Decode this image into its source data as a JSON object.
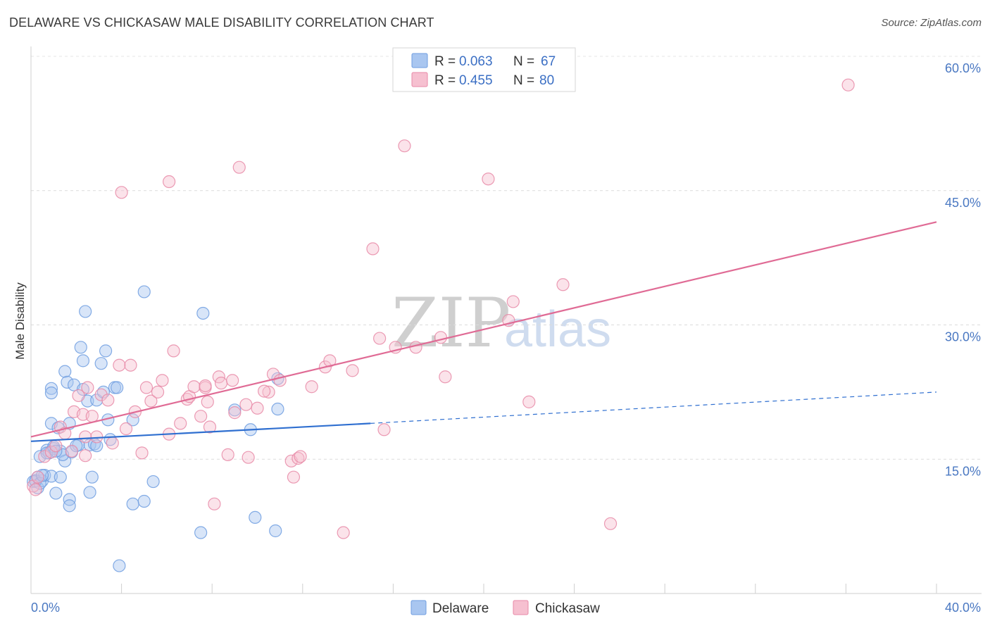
{
  "header": {
    "title": "DELAWARE VS CHICKASAW MALE DISABILITY CORRELATION CHART",
    "source": "Source: ZipAtlas.com"
  },
  "watermark": {
    "zip": "ZIP",
    "atlas": "atlas"
  },
  "legend": {
    "rows": [
      {
        "r_label": "R =",
        "r_value": "0.063",
        "n_label": "N =",
        "n_value": "67",
        "color": "#a9c6f0",
        "stroke": "#6f9de0"
      },
      {
        "r_label": "R =",
        "r_value": "0.455",
        "n_label": "N =",
        "n_value": "80",
        "color": "#f6c0d0",
        "stroke": "#e889a7"
      }
    ]
  },
  "bottom_legend": {
    "series1": "Delaware",
    "series2": "Chickasaw"
  },
  "chart_data": {
    "type": "scatter",
    "title": "DELAWARE VS CHICKASAW MALE DISABILITY CORRELATION CHART",
    "xlabel": "",
    "ylabel": "Male Disability",
    "xlim": [
      0,
      40
    ],
    "ylim": [
      0,
      60
    ],
    "x_tick_labels": [
      "0.0%",
      "40.0%"
    ],
    "y_ticks": [
      15,
      30,
      45,
      60
    ],
    "y_tick_labels": [
      "15.0%",
      "30.0%",
      "45.0%",
      "60.0%"
    ],
    "grid": true,
    "legend_position": "top-center",
    "series": [
      {
        "name": "Delaware",
        "color": "#6f9de0",
        "fill": "#a9c6f0",
        "trend": {
          "x0": 0,
          "y0": 17.0,
          "x1": 15,
          "y1": 19.0,
          "dashed_to_x": 40,
          "dashed_to_y": 22.5,
          "color": "#2f6fd0"
        },
        "points": [
          [
            0.2,
            12.5
          ],
          [
            0.3,
            13.0
          ],
          [
            0.3,
            11.8
          ],
          [
            0.4,
            15.3
          ],
          [
            0.5,
            12.6
          ],
          [
            0.6,
            13.2
          ],
          [
            0.7,
            16.0
          ],
          [
            0.8,
            15.7
          ],
          [
            0.9,
            13.1
          ],
          [
            0.9,
            22.9
          ],
          [
            0.9,
            22.4
          ],
          [
            0.9,
            19.0
          ],
          [
            1.0,
            16.2
          ],
          [
            1.1,
            11.2
          ],
          [
            1.2,
            18.5
          ],
          [
            1.3,
            13.0
          ],
          [
            1.3,
            15.9
          ],
          [
            1.5,
            14.8
          ],
          [
            1.5,
            24.8
          ],
          [
            1.6,
            23.6
          ],
          [
            1.7,
            19.0
          ],
          [
            1.7,
            10.5
          ],
          [
            1.7,
            9.8
          ],
          [
            1.8,
            15.8
          ],
          [
            1.9,
            23.3
          ],
          [
            2.1,
            16.6
          ],
          [
            2.2,
            27.5
          ],
          [
            2.3,
            26.0
          ],
          [
            2.3,
            22.8
          ],
          [
            2.4,
            31.5
          ],
          [
            2.5,
            21.5
          ],
          [
            2.6,
            16.6
          ],
          [
            2.6,
            11.3
          ],
          [
            2.7,
            13.0
          ],
          [
            2.8,
            16.7
          ],
          [
            2.9,
            16.5
          ],
          [
            2.9,
            21.6
          ],
          [
            3.1,
            25.7
          ],
          [
            3.2,
            22.5
          ],
          [
            3.3,
            27.1
          ],
          [
            3.4,
            19.4
          ],
          [
            3.5,
            17.2
          ],
          [
            3.7,
            23.0
          ],
          [
            3.8,
            23.0
          ],
          [
            3.9,
            3.1
          ],
          [
            4.5,
            19.4
          ],
          [
            4.5,
            10.0
          ],
          [
            5.0,
            10.3
          ],
          [
            5.0,
            33.7
          ],
          [
            5.4,
            12.5
          ],
          [
            7.5,
            6.8
          ],
          [
            7.6,
            31.3
          ],
          [
            9.0,
            20.5
          ],
          [
            9.7,
            18.3
          ],
          [
            9.9,
            8.5
          ],
          [
            10.8,
            7.0
          ],
          [
            10.9,
            20.6
          ],
          [
            10.9,
            24.0
          ],
          [
            0.1,
            12.5
          ],
          [
            0.2,
            12.6
          ],
          [
            0.4,
            12.3
          ],
          [
            0.5,
            13.2
          ],
          [
            0.7,
            15.7
          ],
          [
            1.0,
            16.4
          ],
          [
            1.4,
            15.5
          ],
          [
            2.0,
            16.5
          ],
          [
            1.1,
            15.9
          ]
        ]
      },
      {
        "name": "Chickasaw",
        "color": "#e889a7",
        "fill": "#f6c0d0",
        "trend": {
          "x0": 0,
          "y0": 17.5,
          "x1": 40,
          "y1": 41.5,
          "color": "#e06b95"
        },
        "points": [
          [
            0.1,
            12.0
          ],
          [
            0.2,
            11.6
          ],
          [
            0.3,
            13.0
          ],
          [
            0.6,
            15.3
          ],
          [
            0.9,
            15.8
          ],
          [
            1.1,
            16.5
          ],
          [
            1.3,
            18.6
          ],
          [
            1.5,
            17.9
          ],
          [
            1.8,
            15.9
          ],
          [
            1.9,
            20.3
          ],
          [
            2.1,
            22.1
          ],
          [
            2.3,
            20.0
          ],
          [
            2.4,
            15.4
          ],
          [
            2.5,
            23.0
          ],
          [
            2.7,
            19.8
          ],
          [
            2.9,
            17.5
          ],
          [
            3.1,
            22.2
          ],
          [
            3.4,
            21.6
          ],
          [
            3.6,
            16.8
          ],
          [
            3.9,
            25.5
          ],
          [
            4.0,
            44.8
          ],
          [
            4.2,
            18.4
          ],
          [
            4.4,
            25.5
          ],
          [
            4.6,
            20.3
          ],
          [
            4.9,
            15.7
          ],
          [
            5.1,
            23.0
          ],
          [
            5.3,
            21.5
          ],
          [
            5.6,
            22.5
          ],
          [
            5.8,
            23.8
          ],
          [
            6.1,
            17.8
          ],
          [
            6.1,
            46.0
          ],
          [
            6.3,
            27.1
          ],
          [
            6.6,
            19.0
          ],
          [
            6.9,
            21.7
          ],
          [
            7.0,
            22.0
          ],
          [
            7.2,
            23.1
          ],
          [
            7.5,
            19.8
          ],
          [
            7.7,
            23.0
          ],
          [
            7.8,
            21.4
          ],
          [
            7.9,
            18.6
          ],
          [
            8.1,
            10.0
          ],
          [
            8.3,
            24.2
          ],
          [
            8.4,
            23.5
          ],
          [
            8.7,
            15.5
          ],
          [
            8.9,
            23.8
          ],
          [
            9.0,
            20.2
          ],
          [
            9.2,
            47.6
          ],
          [
            9.5,
            21.1
          ],
          [
            9.6,
            15.2
          ],
          [
            10.0,
            20.7
          ],
          [
            10.5,
            22.5
          ],
          [
            10.7,
            24.5
          ],
          [
            11.0,
            23.8
          ],
          [
            11.5,
            14.8
          ],
          [
            11.6,
            13.0
          ],
          [
            11.8,
            15.1
          ],
          [
            11.9,
            15.3
          ],
          [
            12.4,
            23.1
          ],
          [
            13.0,
            25.3
          ],
          [
            13.2,
            26.0
          ],
          [
            13.8,
            6.8
          ],
          [
            14.2,
            24.9
          ],
          [
            15.1,
            38.5
          ],
          [
            15.4,
            28.5
          ],
          [
            15.6,
            18.3
          ],
          [
            16.1,
            27.5
          ],
          [
            16.5,
            50.0
          ],
          [
            17.0,
            27.5
          ],
          [
            18.1,
            28.6
          ],
          [
            18.3,
            24.2
          ],
          [
            20.2,
            46.3
          ],
          [
            21.1,
            30.5
          ],
          [
            21.3,
            32.6
          ],
          [
            22.0,
            21.4
          ],
          [
            23.5,
            34.5
          ],
          [
            25.6,
            7.8
          ],
          [
            36.1,
            56.8
          ],
          [
            7.7,
            23.2
          ],
          [
            10.3,
            22.6
          ],
          [
            2.4,
            17.5
          ]
        ]
      }
    ]
  }
}
